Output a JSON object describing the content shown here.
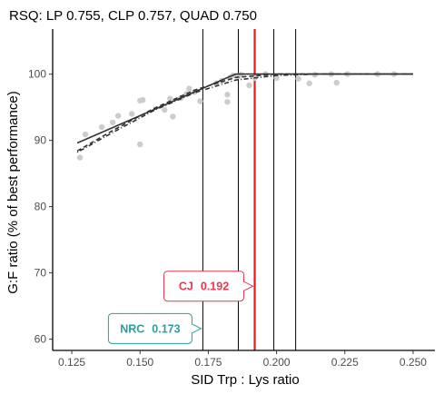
{
  "chart_data": {
    "type": "scatter",
    "title": "RSQ: LP 0.755, CLP 0.757, QUAD 0.750",
    "xlabel": "SID Trp : Lys ratio",
    "ylabel": "G:F ratio (% of best performance)",
    "xlim": [
      0.118,
      0.258
    ],
    "ylim": [
      58.3,
      106.8
    ],
    "xticks": [
      0.125,
      0.15,
      0.175,
      0.2,
      0.225,
      0.25
    ],
    "xtick_labels": [
      "0.125",
      "0.150",
      "0.175",
      "0.200",
      "0.225",
      "0.250"
    ],
    "yticks": [
      60,
      70,
      80,
      90,
      100
    ],
    "ytick_labels": [
      "60",
      "70",
      "80",
      "90",
      "100"
    ],
    "grid": false,
    "point_color": "#cccccc",
    "points": [
      {
        "x": 0.128,
        "y": 87.4
      },
      {
        "x": 0.13,
        "y": 90.9
      },
      {
        "x": 0.136,
        "y": 92.0
      },
      {
        "x": 0.14,
        "y": 92.7
      },
      {
        "x": 0.142,
        "y": 93.7
      },
      {
        "x": 0.147,
        "y": 94.0
      },
      {
        "x": 0.15,
        "y": 89.4
      },
      {
        "x": 0.15,
        "y": 96.0
      },
      {
        "x": 0.151,
        "y": 96.1
      },
      {
        "x": 0.159,
        "y": 94.6
      },
      {
        "x": 0.161,
        "y": 96.3
      },
      {
        "x": 0.162,
        "y": 93.6
      },
      {
        "x": 0.165,
        "y": 96.4
      },
      {
        "x": 0.167,
        "y": 97.0
      },
      {
        "x": 0.168,
        "y": 97.8
      },
      {
        "x": 0.17,
        "y": 97.3
      },
      {
        "x": 0.172,
        "y": 95.9
      },
      {
        "x": 0.178,
        "y": 98.6
      },
      {
        "x": 0.18,
        "y": 99.0
      },
      {
        "x": 0.182,
        "y": 96.9
      },
      {
        "x": 0.182,
        "y": 95.8
      },
      {
        "x": 0.183,
        "y": 99.5
      },
      {
        "x": 0.184,
        "y": 99.8
      },
      {
        "x": 0.186,
        "y": 99.7
      },
      {
        "x": 0.187,
        "y": 99.9
      },
      {
        "x": 0.19,
        "y": 98.3
      },
      {
        "x": 0.192,
        "y": 99.4
      },
      {
        "x": 0.196,
        "y": 100.0
      },
      {
        "x": 0.2,
        "y": 99.4
      },
      {
        "x": 0.208,
        "y": 99.3
      },
      {
        "x": 0.212,
        "y": 98.6
      },
      {
        "x": 0.214,
        "y": 99.9
      },
      {
        "x": 0.22,
        "y": 100.0
      },
      {
        "x": 0.222,
        "y": 98.7
      },
      {
        "x": 0.226,
        "y": 100.0
      },
      {
        "x": 0.237,
        "y": 100.0
      },
      {
        "x": 0.243,
        "y": 100.0
      }
    ],
    "models": [
      {
        "line_style": "solid",
        "points": [
          [
            0.127,
            89.6
          ],
          [
            0.185,
            100.0
          ],
          [
            0.25,
            100.0
          ]
        ]
      },
      {
        "line_style": "dashed",
        "points": [
          [
            0.127,
            88.4
          ],
          [
            0.14,
            91.5
          ],
          [
            0.155,
            94.8
          ],
          [
            0.17,
            97.6
          ],
          [
            0.185,
            99.5
          ],
          [
            0.2,
            100.0
          ],
          [
            0.25,
            100.0
          ]
        ]
      },
      {
        "line_style": "dotdash",
        "points": [
          [
            0.127,
            88.2
          ],
          [
            0.14,
            91.2
          ],
          [
            0.155,
            94.5
          ],
          [
            0.17,
            97.2
          ],
          [
            0.185,
            99.1
          ],
          [
            0.2,
            99.8
          ],
          [
            0.215,
            100.0
          ],
          [
            0.25,
            100.0
          ]
        ]
      }
    ],
    "reference_lines": [
      {
        "x": 0.173,
        "color": "#000000"
      },
      {
        "x": 0.186,
        "color": "#000000"
      },
      {
        "x": 0.192,
        "color": "#e31a1c"
      },
      {
        "x": 0.199,
        "color": "#000000"
      },
      {
        "x": 0.207,
        "color": "#000000"
      }
    ],
    "callouts": [
      {
        "label": "CJ",
        "value": "0.192",
        "x": 0.192,
        "y": 68.0,
        "color": "#e8384f"
      },
      {
        "label": "NRC",
        "value": "0.173",
        "x": 0.173,
        "y": 61.6,
        "color": "#2b9e9e"
      }
    ]
  }
}
